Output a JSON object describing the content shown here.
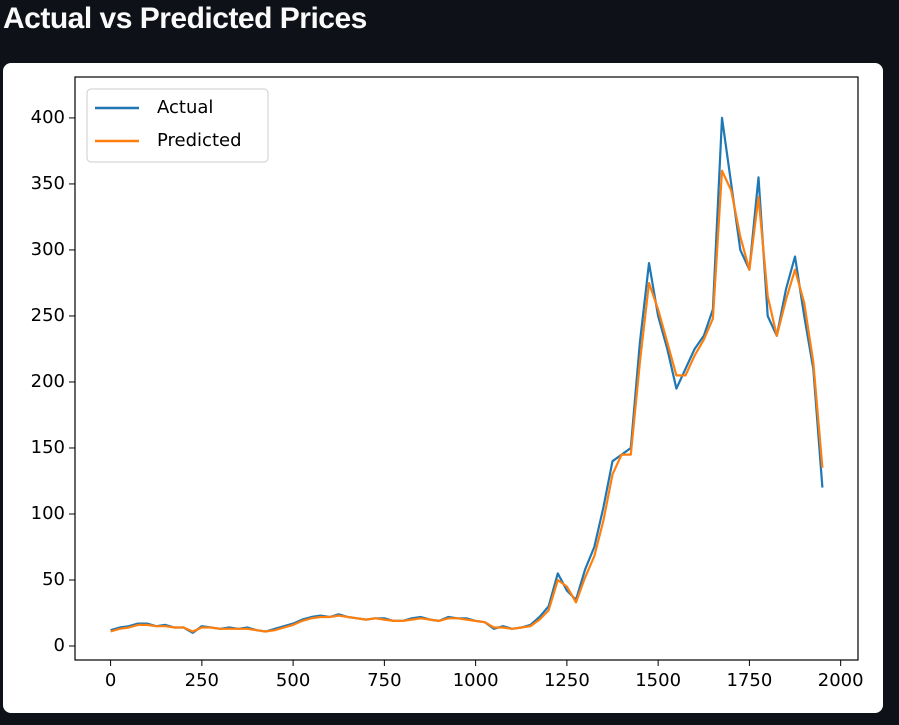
{
  "chart_data": {
    "type": "line",
    "title": "Actual vs Predicted Prices",
    "x": [
      0,
      25,
      50,
      75,
      100,
      125,
      150,
      175,
      200,
      225,
      250,
      275,
      300,
      325,
      350,
      375,
      400,
      425,
      450,
      475,
      500,
      525,
      550,
      575,
      600,
      625,
      650,
      675,
      700,
      725,
      750,
      775,
      800,
      825,
      850,
      875,
      900,
      925,
      950,
      975,
      1000,
      1025,
      1050,
      1075,
      1100,
      1125,
      1150,
      1175,
      1200,
      1225,
      1250,
      1275,
      1300,
      1325,
      1350,
      1375,
      1400,
      1425,
      1450,
      1475,
      1500,
      1525,
      1550,
      1575,
      1600,
      1625,
      1650,
      1675,
      1700,
      1725,
      1750,
      1775,
      1800,
      1825,
      1850,
      1875,
      1900,
      1925,
      1950
    ],
    "series": [
      {
        "name": "Actual",
        "color": "#1f77b4",
        "values": [
          12,
          14,
          15,
          17,
          17,
          15,
          16,
          14,
          14,
          10,
          15,
          14,
          13,
          14,
          13,
          14,
          12,
          11,
          13,
          15,
          17,
          20,
          22,
          23,
          22,
          24,
          22,
          21,
          20,
          21,
          21,
          19,
          19,
          21,
          22,
          20,
          19,
          22,
          21,
          21,
          19,
          18,
          13,
          15,
          13,
          14,
          16,
          22,
          30,
          55,
          42,
          35,
          58,
          75,
          105,
          140,
          145,
          150,
          230,
          290,
          250,
          225,
          195,
          210,
          225,
          235,
          255,
          400,
          350,
          300,
          285,
          355,
          250,
          235,
          270,
          295,
          250,
          210,
          120
        ]
      },
      {
        "name": "Predicted",
        "color": "#ff7f0e",
        "values": [
          11,
          13,
          14,
          16,
          16,
          15,
          15,
          14,
          14,
          11,
          14,
          14,
          13,
          13,
          13,
          13,
          12,
          11,
          12,
          14,
          16,
          19,
          21,
          22,
          22,
          23,
          22,
          21,
          20,
          21,
          20,
          19,
          19,
          20,
          21,
          20,
          19,
          21,
          21,
          20,
          19,
          18,
          14,
          14,
          13,
          14,
          15,
          20,
          27,
          50,
          45,
          33,
          52,
          68,
          95,
          130,
          145,
          145,
          215,
          275,
          255,
          230,
          205,
          205,
          220,
          232,
          248,
          360,
          345,
          310,
          285,
          340,
          265,
          235,
          262,
          285,
          260,
          215,
          135
        ]
      }
    ],
    "xlim": [
      -97.5,
      2047.5
    ],
    "ylim": [
      -10.6,
      431
    ],
    "xticks": [
      0,
      250,
      500,
      750,
      1000,
      1250,
      1500,
      1750,
      2000
    ],
    "yticks": [
      0,
      50,
      100,
      150,
      200,
      250,
      300,
      350,
      400
    ],
    "legend": "upper left"
  }
}
